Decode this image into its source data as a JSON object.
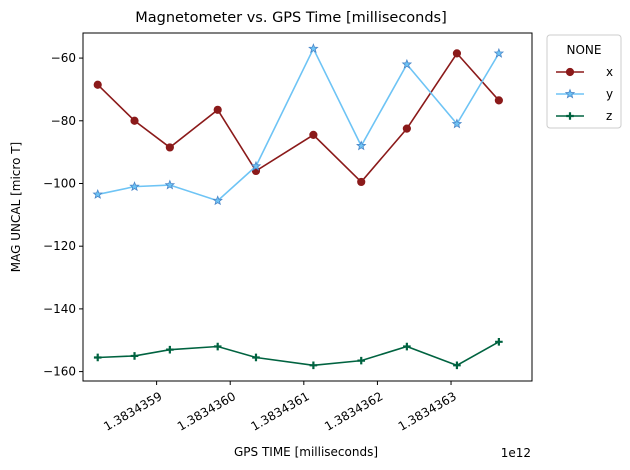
{
  "chart_data": {
    "type": "line",
    "title": "Magnetometer vs. GPS Time [milliseconds]",
    "xlabel": "GPS TIME [milliseconds]",
    "ylabel": "MAG UNCAL [micro T]",
    "x_offset_label": "1e12",
    "x_scale": 1000000000000,
    "xlim": [
      1.3834358,
      1.38343641
    ],
    "ylim": [
      -163,
      -52
    ],
    "x_ticks": [
      1.3834359,
      1.383436,
      1.3834361,
      1.3834362,
      1.3834363
    ],
    "x_tick_labels": [
      "1.3834359",
      "1.3834360",
      "1.3834361",
      "1.3834362",
      "1.3834363"
    ],
    "y_ticks": [
      -60,
      -80,
      -100,
      -120,
      -140,
      -160
    ],
    "y_tick_labels": [
      "−60",
      "−80",
      "−100",
      "−120",
      "−140",
      "−160"
    ],
    "legend_title": "NONE",
    "legend_placement": "outside right, top",
    "grid": false,
    "x": [
      1.38343582,
      1.38343587,
      1.383435918,
      1.383435983,
      1.383436035,
      1.383436113,
      1.383436178,
      1.38343624,
      1.383436308,
      1.383436365
    ],
    "series": [
      {
        "name": "x",
        "color": "#8b1a1a",
        "marker": "circle",
        "values": [
          -68.5,
          -80,
          -88.5,
          -76.5,
          -96,
          -84.5,
          -99.5,
          -82.5,
          -58.5,
          -73.5
        ]
      },
      {
        "name": "y",
        "color": "#6ec4f5",
        "marker": "star",
        "values": [
          -103.5,
          -101,
          -100.5,
          -105.5,
          -94.5,
          -57,
          -88,
          -62,
          -81,
          -58.5
        ]
      },
      {
        "name": "z",
        "color": "#006340",
        "marker": "plus",
        "values": [
          -155.5,
          -155,
          -153,
          -152,
          -155.5,
          -158,
          -156.5,
          -152,
          -158,
          -150.5
        ]
      }
    ]
  }
}
